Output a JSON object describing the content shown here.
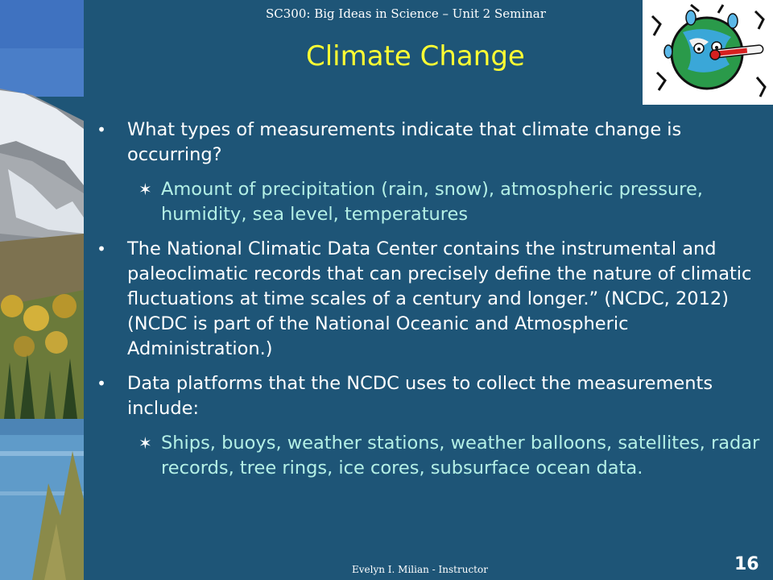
{
  "header": {
    "course": "SC300: Big Ideas in Science – Unit 2 Seminar"
  },
  "title": "Climate Change",
  "bullets": [
    {
      "text": "What types of measurements indicate that climate change is occurring?",
      "sub": "Amount of precipitation (rain, snow), atmospheric pressure, humidity, sea level, temperatures"
    },
    {
      "text": "The National Climatic Data Center contains the instrumental and paleoclimatic records that can precisely define the nature of climatic fluctuations at time scales of a century and longer.” (NCDC, 2012) (NCDC is part of the National Oceanic and Atmospheric Administration.)"
    },
    {
      "text": "Data platforms that the NCDC uses to collect the measurements include:",
      "sub": "Ships, buoys, weather stations, weather balloons, satellites, radar records, tree rings, ice cores, subsurface ocean data."
    }
  ],
  "markers": {
    "bullet": "•",
    "sub": "✶"
  },
  "footer": {
    "instructor": "Evelyn I. Milian - Instructor",
    "page_number": "16"
  },
  "images": {
    "left": "mountain-lake-photo",
    "logo": "sweating-earth-thermometer-icon"
  },
  "colors": {
    "background": "#1e5577",
    "title": "#ffff33",
    "body_text": "#ffffff",
    "sub_text": "#b4f0e6"
  }
}
